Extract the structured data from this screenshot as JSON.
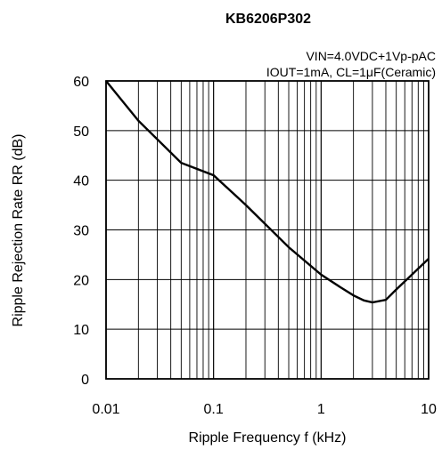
{
  "chart_data": {
    "type": "line",
    "title": "KB6206P302",
    "conditions": [
      "VIN=4.0VDC+1Vp-pAC",
      "IOUT=1mA, CL=1μF(Ceramic)"
    ],
    "xlabel": "Ripple Frequency f (kHz)",
    "ylabel": "Ripple Rejection Rate RR (dB)",
    "x_scale": "log",
    "xlim": [
      0.01,
      10
    ],
    "ylim": [
      0,
      60
    ],
    "x_ticks": [
      0.01,
      0.1,
      1,
      10
    ],
    "x_tick_labels": [
      "0.01",
      "0.1",
      "1",
      "10"
    ],
    "y_ticks": [
      0,
      10,
      20,
      30,
      40,
      50,
      60
    ],
    "y_tick_labels": [
      "0",
      "10",
      "20",
      "30",
      "40",
      "50",
      "60"
    ],
    "grid": true,
    "series": [
      {
        "x": [
          0.01,
          0.02,
          0.05,
          0.1,
          0.2,
          0.5,
          1,
          1.5,
          2,
          2.5,
          3,
          4,
          5,
          7,
          10
        ],
        "y": [
          60,
          52,
          43.5,
          41,
          35,
          26.5,
          21,
          18.5,
          16.8,
          15.8,
          15.4,
          15.9,
          18,
          21,
          24.2
        ]
      }
    ]
  }
}
